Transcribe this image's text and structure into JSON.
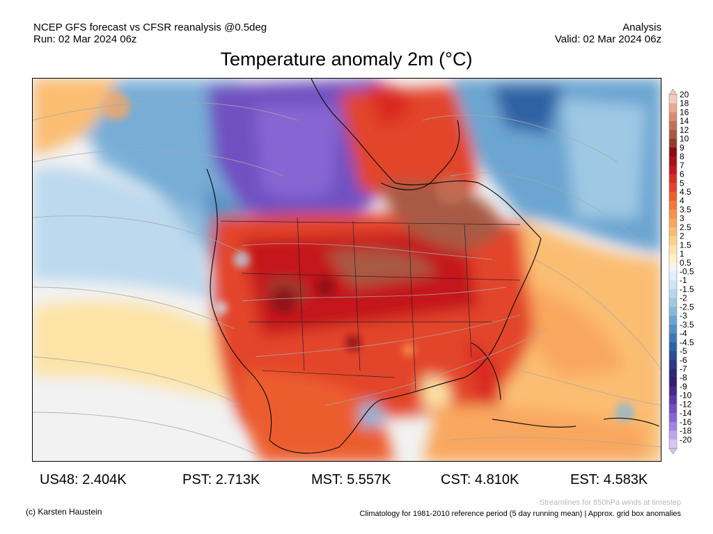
{
  "header": {
    "left_line1": "NCEP GFS forecast vs CFSR reanalysis @0.5deg",
    "left_line2": "Run: 02 Mar 2024 06z",
    "right_line1": "Analysis",
    "right_line2": "Valid: 02 Mar 2024 06z"
  },
  "title": "Temperature anomaly 2m (°C)",
  "colorbar": {
    "levels": [
      "20",
      "18",
      "16",
      "14",
      "12",
      "10",
      "9",
      "8",
      "7",
      "6",
      "5",
      "4.5",
      "4",
      "3.5",
      "3",
      "2.5",
      "2",
      "1.5",
      "1",
      "0.5",
      "-0.5",
      "-1",
      "-1.5",
      "-2",
      "-2.5",
      "-3",
      "-3.5",
      "-4",
      "-4.5",
      "-5",
      "-6",
      "-7",
      "-8",
      "-9",
      "-10",
      "-12",
      "-14",
      "-16",
      "-18",
      "-20"
    ],
    "colors": [
      "#f3cbb8",
      "#e6ab92",
      "#d68c72",
      "#c27158",
      "#a85a44",
      "#933d2f",
      "#8b0b12",
      "#a4121a",
      "#c4161f",
      "#da2c22",
      "#e3452a",
      "#ec5d2f",
      "#f2773a",
      "#f6914b",
      "#f9a75e",
      "#fbbd72",
      "#fcd28a",
      "#fde3a6",
      "#fdf1c6",
      "#f4f4f4",
      "#e2eef8",
      "#cfe4f3",
      "#b8d7ec",
      "#9fc8e4",
      "#86b8dc",
      "#6ca5d1",
      "#5490c4",
      "#3f79b5",
      "#2f62a3",
      "#2a4c95",
      "#283a86",
      "#2b2878",
      "#341f6e",
      "#452a8a",
      "#5a3aa6",
      "#6f51c1",
      "#8766d3",
      "#a184e1",
      "#bda6ec",
      "#d5c7f4"
    ]
  },
  "stats": [
    {
      "label": "US48: 2.404K"
    },
    {
      "label": "PST: 2.713K"
    },
    {
      "label": "MST: 5.557K"
    },
    {
      "label": "CST: 4.810K"
    },
    {
      "label": "EST: 4.583K"
    }
  ],
  "footer": {
    "left": "(c) Karsten Haustein",
    "streamlines_note": "Streamlines for 850hPa winds at timestep",
    "climatology_note": "Climatology for 1981-2010 reference period (5 day running mean) | Approx. grid box anomalies"
  }
}
